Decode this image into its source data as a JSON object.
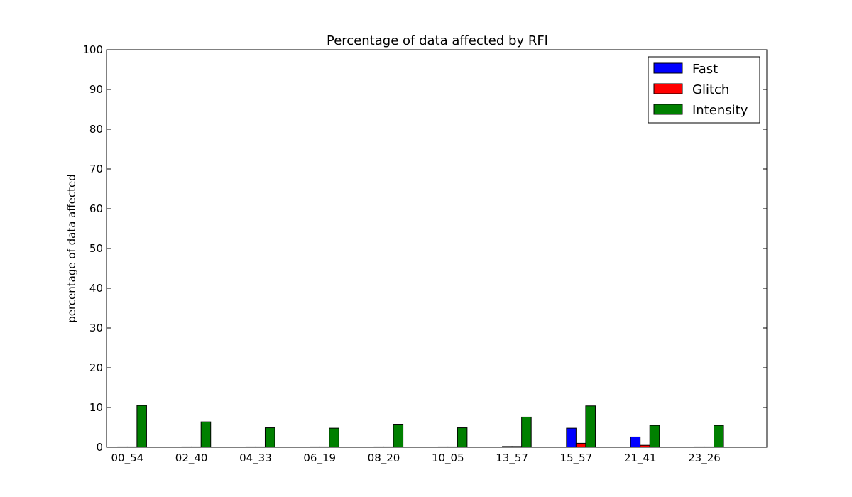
{
  "chart_data": {
    "type": "bar",
    "title": "Percentage of data affected by RFI",
    "xlabel": "",
    "ylabel": "percentage of data affected",
    "ylim": [
      0,
      100
    ],
    "yticks": [
      0,
      10,
      20,
      30,
      40,
      50,
      60,
      70,
      80,
      90,
      100
    ],
    "grid": false,
    "legend_position": "top-right",
    "categories": [
      "00_54",
      "02_40",
      "04_33",
      "06_19",
      "08_20",
      "10_05",
      "13_57",
      "15_57",
      "21_41",
      "23_26"
    ],
    "series": [
      {
        "name": "Fast",
        "color": "#0000ff",
        "values": [
          0.1,
          0.1,
          0.1,
          0.1,
          0.1,
          0.1,
          0.2,
          4.8,
          2.6,
          0.1
        ]
      },
      {
        "name": "Glitch",
        "color": "#ff0000",
        "values": [
          0.1,
          0.1,
          0.1,
          0.1,
          0.1,
          0.1,
          0.2,
          1.0,
          0.5,
          0.1
        ]
      },
      {
        "name": "Intensity",
        "color": "#008000",
        "values": [
          10.5,
          6.4,
          4.9,
          4.8,
          5.8,
          4.9,
          7.6,
          10.4,
          5.5,
          5.5
        ]
      }
    ]
  }
}
